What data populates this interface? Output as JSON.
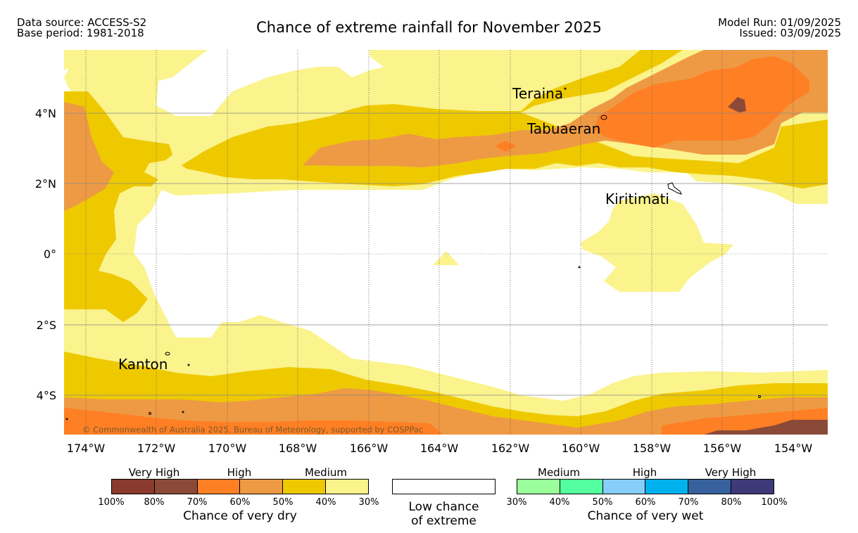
{
  "header": {
    "source": "Data source: ACCESS-S2",
    "base_period": "Base period: 1981-2018",
    "title": "Chance of extreme rainfall for November 2025",
    "model_run": "Model Run: 01/09/2025",
    "issued": "Issued: 03/09/2025"
  },
  "map": {
    "lat_labels": [
      "4°N",
      "2°N",
      "0°",
      "2°S",
      "4°S"
    ],
    "lon_labels": [
      "174°W",
      "172°W",
      "170°W",
      "168°W",
      "166°W",
      "164°W",
      "162°W",
      "160°W",
      "158°W",
      "156°W",
      "154°W"
    ],
    "places": [
      "Teraina",
      "Tabuaeran",
      "Kiritimati",
      "Kanton"
    ],
    "copyright": "© Commonwealth of Australia 2025, Bureau of Meteorology, supported by COSPPac"
  },
  "colors": {
    "dry_very_high_1": "#8b3a2e",
    "dry_very_high_2": "#8b4a38",
    "dry_high_1": "#ff7f24",
    "dry_high_2": "#ee9a44",
    "dry_medium_1": "#eec900",
    "dry_medium_2": "#fbf38c",
    "wet_medium_1": "#9aff9a",
    "wet_medium_2": "#54ff9f",
    "wet_high_1": "#87cefa",
    "wet_high_2": "#00b2ee",
    "wet_very_high_1": "#36619c",
    "wet_very_high_2": "#3e3a7a"
  },
  "legend": {
    "dry": {
      "categories": [
        "Very High",
        "High",
        "Medium"
      ],
      "ticks": [
        "100%",
        "80%",
        "70%",
        "60%",
        "50%",
        "40%",
        "30%"
      ],
      "title": "Chance of very dry"
    },
    "low": {
      "line1": "Low chance",
      "line2": "of extreme"
    },
    "wet": {
      "categories": [
        "Medium",
        "High",
        "Very High"
      ],
      "ticks": [
        "30%",
        "40%",
        "50%",
        "60%",
        "70%",
        "80%",
        "100%"
      ],
      "title": "Chance of very wet"
    }
  }
}
